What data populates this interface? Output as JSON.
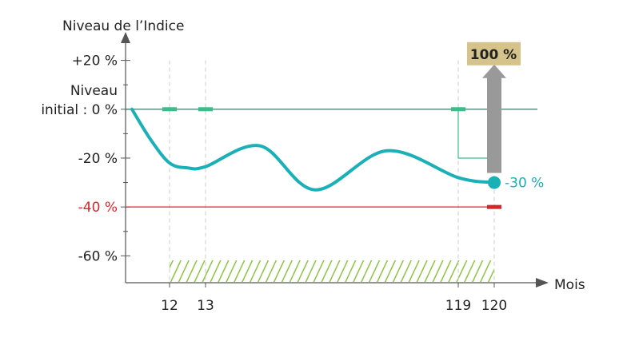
{
  "chart_data": {
    "type": "line",
    "y_axis_label": "Niveau de l’Indice",
    "x_axis_label": "Mois",
    "x": [
      0,
      6,
      12,
      12.5,
      13,
      36,
      59,
      89,
      119,
      120
    ],
    "values": [
      0,
      -12.5,
      -22,
      -24,
      -23.5,
      -15,
      -33,
      -17,
      -28,
      -30
    ],
    "color": "#1ab0b8",
    "ylim": [
      -71,
      30
    ],
    "yticks": [
      {
        "value": 20,
        "label": "+20 %"
      },
      {
        "value": 0,
        "label": "Niveau\ninitial : 0 %"
      },
      {
        "value": -20,
        "label": "-20 %"
      },
      {
        "value": -40,
        "label": "-40 %"
      },
      {
        "value": -60,
        "label": "-60 %"
      }
    ],
    "yminorticks": [
      10,
      -10,
      -30,
      -50
    ],
    "xticks": [
      12,
      13,
      119,
      120
    ],
    "final_value_label": "-30 %",
    "reference_line": {
      "value": 0,
      "color": "#3b7a6a"
    },
    "barrier_line": {
      "value": -40,
      "color": "#d9262b"
    },
    "observation_marks": {
      "months": [
        12,
        13,
        119
      ],
      "value": 0,
      "color": "#3dbb8a"
    },
    "final_threshold": {
      "month": 120,
      "value": -20,
      "color": "#3dbb8a"
    },
    "payout": {
      "label": "100 %",
      "from": -30,
      "to": 17,
      "color": "#999999",
      "label_color": "#d6c38b"
    },
    "hatch": {
      "from": 12,
      "to": 120,
      "color": "#8cc63f"
    }
  }
}
